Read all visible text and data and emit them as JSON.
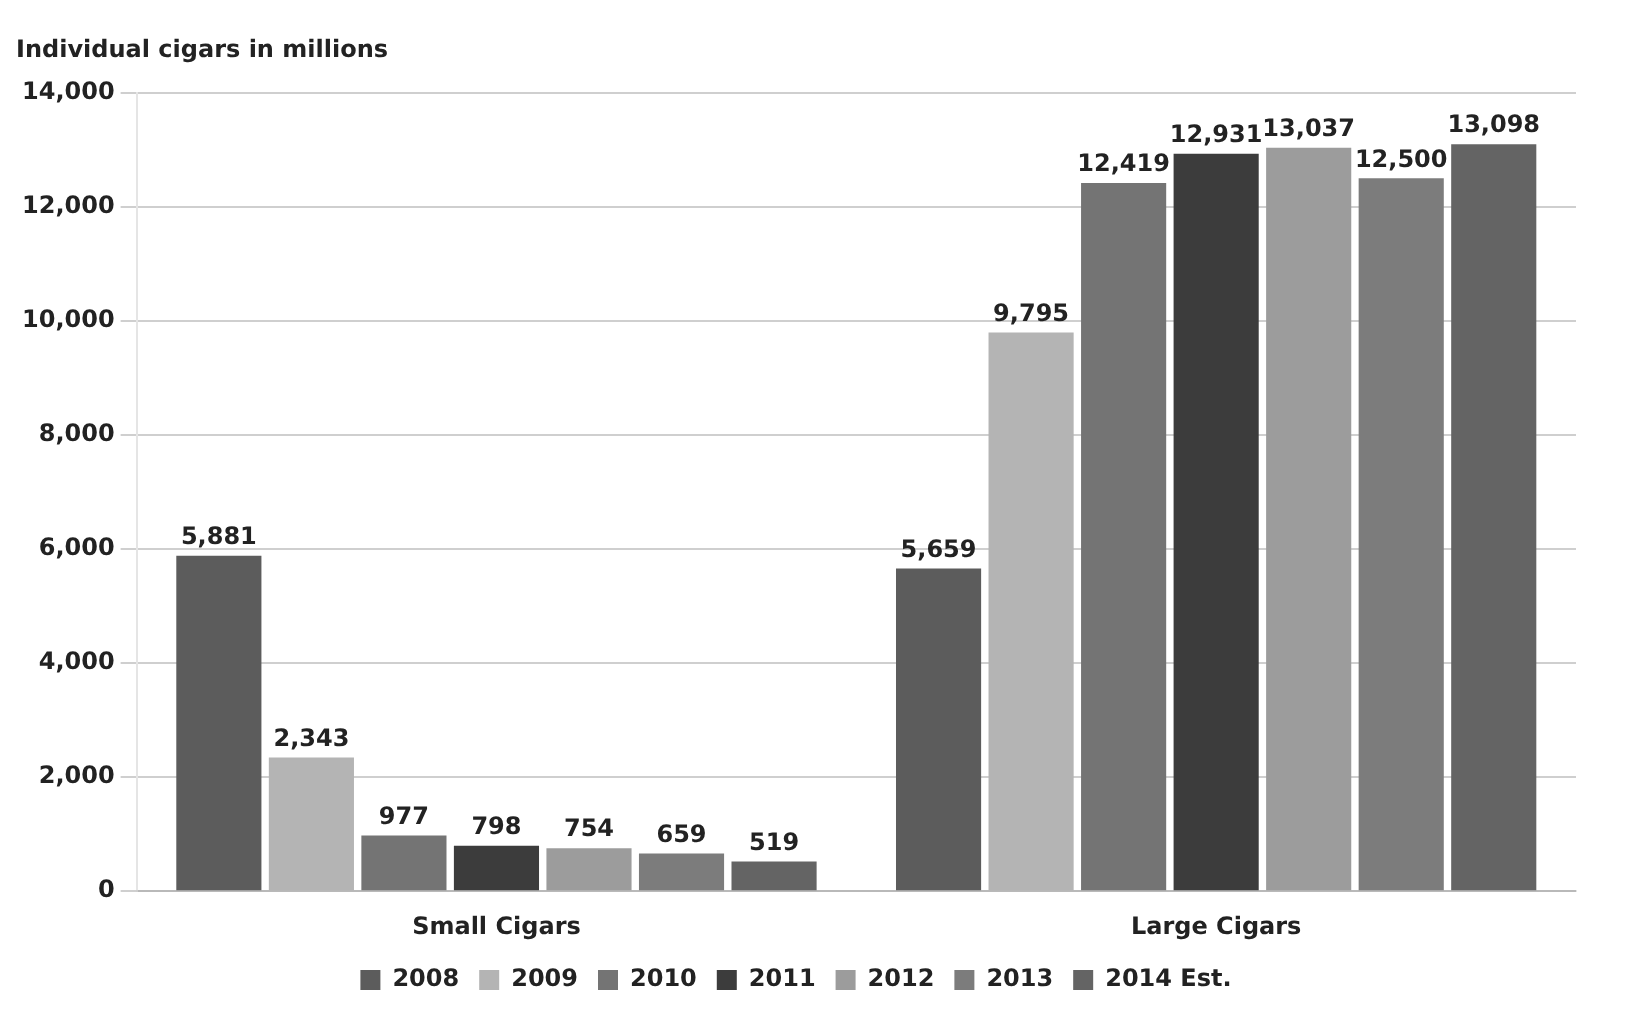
{
  "chart_data": {
    "type": "bar",
    "ylabel": "Individual cigars in millions",
    "categories": [
      "Small Cigars",
      "Large Cigars"
    ],
    "series": [
      {
        "name": "2008",
        "color": "#5c5c5c",
        "values": [
          5881,
          5659
        ],
        "value_labels": [
          "5,881",
          "5,659"
        ]
      },
      {
        "name": "2009",
        "color": "#b4b4b4",
        "values": [
          2343,
          9795
        ],
        "value_labels": [
          "2,343",
          "9,795"
        ]
      },
      {
        "name": "2010",
        "color": "#747474",
        "values": [
          977,
          12419
        ],
        "value_labels": [
          "977",
          "12,419"
        ]
      },
      {
        "name": "2011",
        "color": "#3c3c3c",
        "values": [
          798,
          12931
        ],
        "value_labels": [
          "798",
          "12,931"
        ]
      },
      {
        "name": "2012",
        "color": "#9c9c9c",
        "values": [
          754,
          13037
        ],
        "value_labels": [
          "754",
          "13,037"
        ]
      },
      {
        "name": "2013",
        "color": "#7c7c7c",
        "values": [
          659,
          12500
        ],
        "value_labels": [
          "659",
          "12,500"
        ]
      },
      {
        "name": "2014 Est.",
        "color": "#646464",
        "values": [
          519,
          13098
        ],
        "value_labels": [
          "519",
          "13,098"
        ]
      }
    ],
    "ylim": [
      0,
      14000
    ],
    "yticks": [
      {
        "value": 0,
        "label": "0"
      },
      {
        "value": 2000,
        "label": "2,000"
      },
      {
        "value": 4000,
        "label": "4,000"
      },
      {
        "value": 6000,
        "label": "6,000"
      },
      {
        "value": 8000,
        "label": "8,000"
      },
      {
        "value": 10000,
        "label": "10,000"
      },
      {
        "value": 12000,
        "label": "12,000"
      },
      {
        "value": 14000,
        "label": "14,000"
      }
    ],
    "grid": "y",
    "legend": "bottom"
  }
}
